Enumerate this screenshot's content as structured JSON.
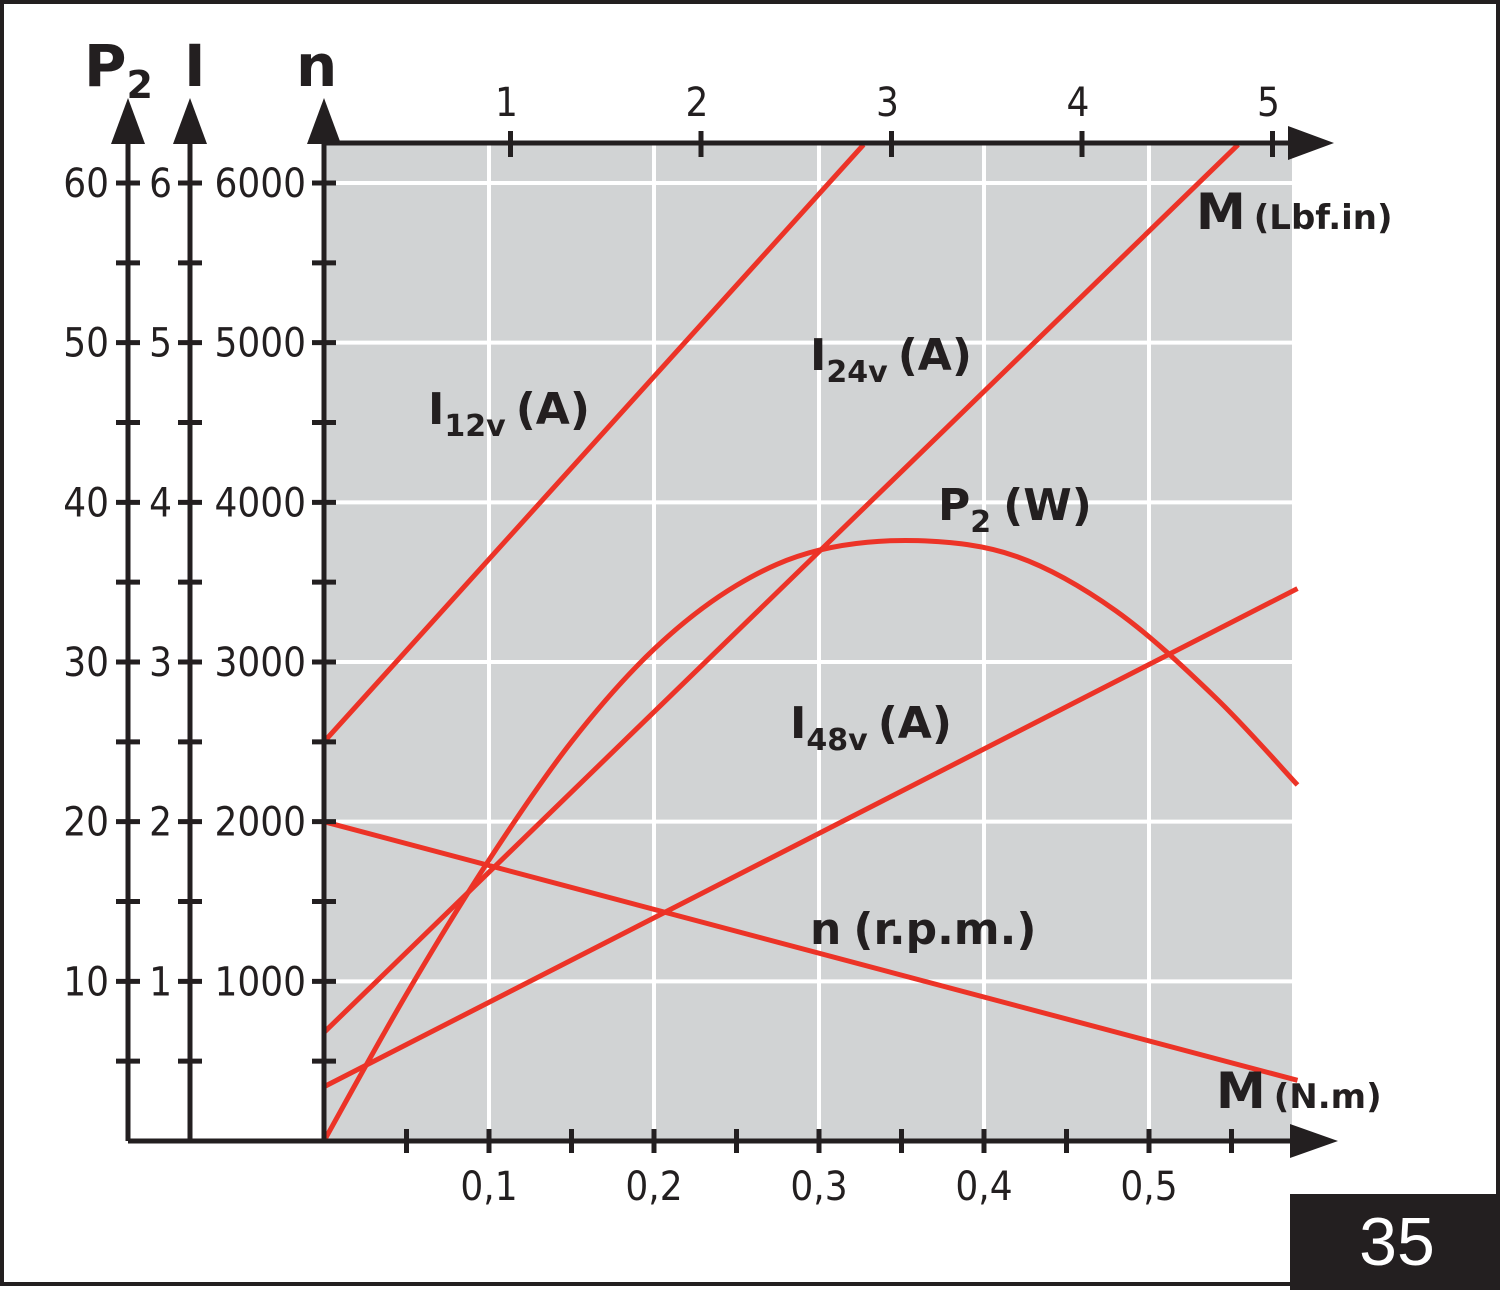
{
  "page_number": "35",
  "chart_data": {
    "type": "line",
    "x_axis_bottom": {
      "label": "M",
      "unit": "(N.m)",
      "range": [
        0,
        0.59
      ],
      "tick_labels": [
        "0,1",
        "0,2",
        "0,3",
        "0,4",
        "0,5"
      ],
      "tick_values": [
        0.1,
        0.2,
        0.3,
        0.4,
        0.5
      ]
    },
    "x_axis_top": {
      "label": "M",
      "unit": "(Lbf.in)",
      "tick_labels": [
        "1",
        "2",
        "3",
        "4",
        "5"
      ],
      "tick_values": [
        1,
        2,
        3,
        4,
        5
      ]
    },
    "y_axes": [
      {
        "id": "P2",
        "label_main": "P",
        "label_sub": "2",
        "unit": "W",
        "range": [
          0,
          60
        ],
        "tick_labels": [
          "10",
          "20",
          "30",
          "40",
          "50",
          "60"
        ],
        "tick_values": [
          10,
          20,
          30,
          40,
          50,
          60
        ]
      },
      {
        "id": "I",
        "label_main": "I",
        "label_sub": "",
        "unit": "A",
        "range": [
          0,
          6
        ],
        "tick_labels": [
          "1",
          "2",
          "3",
          "4",
          "5",
          "6"
        ],
        "tick_values": [
          1,
          2,
          3,
          4,
          5,
          6
        ]
      },
      {
        "id": "n",
        "label_main": "n",
        "label_sub": "",
        "unit": "r.p.m.",
        "range": [
          0,
          6000
        ],
        "tick_labels": [
          "1000",
          "2000",
          "3000",
          "4000",
          "5000",
          "6000"
        ],
        "tick_values": [
          1000,
          2000,
          3000,
          4000,
          5000,
          6000
        ]
      }
    ],
    "grid": true,
    "series": [
      {
        "name_main": "I",
        "name_sub": "12v",
        "name_unit": "(A)",
        "axis": "I",
        "points": [
          [
            0,
            2.5
          ],
          [
            0.327,
            6.24
          ]
        ]
      },
      {
        "name_main": "I",
        "name_sub": "24v",
        "name_unit": "(A)",
        "axis": "I",
        "points": [
          [
            0,
            0.68
          ],
          [
            0.554,
            6.24
          ]
        ]
      },
      {
        "name_main": "I",
        "name_sub": "48v",
        "name_unit": "(A)",
        "axis": "I",
        "points": [
          [
            0,
            0.34
          ],
          [
            0.59,
            3.46
          ]
        ]
      },
      {
        "name_main": "n",
        "name_sub": "",
        "name_unit": "(r.p.m.)",
        "axis": "n",
        "points": [
          [
            0,
            2000
          ],
          [
            0.59,
            380
          ]
        ]
      },
      {
        "name_main": "P",
        "name_sub": "2",
        "name_unit": "(W)",
        "axis": "P2",
        "points": [
          [
            0,
            0
          ],
          [
            0.05,
            9.2
          ],
          [
            0.1,
            17.6
          ],
          [
            0.15,
            25
          ],
          [
            0.2,
            30.8
          ],
          [
            0.25,
            34.8
          ],
          [
            0.3,
            37
          ],
          [
            0.36,
            37.6
          ],
          [
            0.42,
            36.6
          ],
          [
            0.48,
            33.2
          ],
          [
            0.54,
            27.8
          ],
          [
            0.59,
            22.3
          ]
        ]
      }
    ],
    "colors": {
      "curve": "#ec3327",
      "plot_bg": "#d1d3d4",
      "grid": "#ffffff",
      "axis": "#231f20"
    }
  }
}
